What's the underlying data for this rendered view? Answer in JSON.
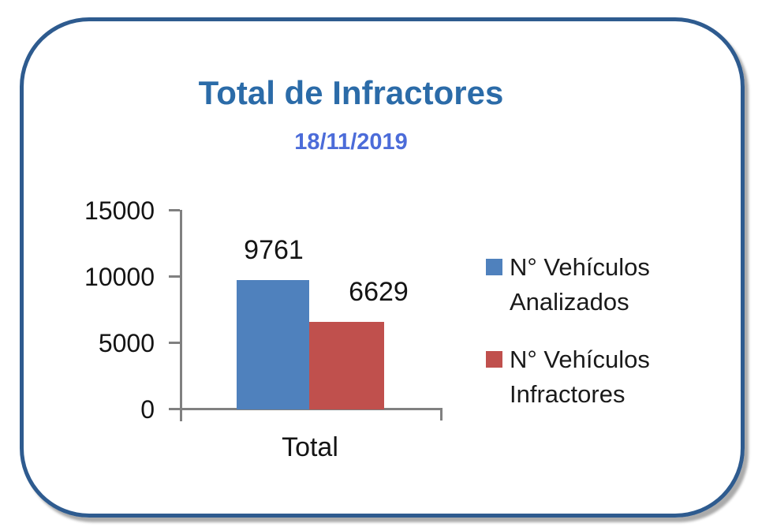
{
  "card": {
    "title": "Total de Infractores",
    "subtitle": "18/11/2019"
  },
  "chart_data": {
    "type": "bar",
    "title": "Total de Infractores",
    "subtitle": "18/11/2019",
    "categories": [
      "Total"
    ],
    "series": [
      {
        "name": "N° Vehículos Analizados",
        "color": "#4F81BD",
        "values": [
          9761
        ]
      },
      {
        "name": "N° Vehículos Infractores",
        "color": "#C0504D",
        "values": [
          6629
        ]
      }
    ],
    "ylim": [
      0,
      15000
    ],
    "yticks": [
      0,
      5000,
      10000,
      15000
    ],
    "xlabel": "",
    "ylabel": "",
    "grid": false,
    "data_labels": true,
    "legend_position": "right"
  },
  "colors": {
    "title": "#2B6BA8",
    "subtitle": "#4C6CD9",
    "border": "#2E5B8F",
    "shadow": "#ABABAB",
    "axis": "#808080",
    "text": "#141414",
    "background": "#FFFFFF"
  }
}
